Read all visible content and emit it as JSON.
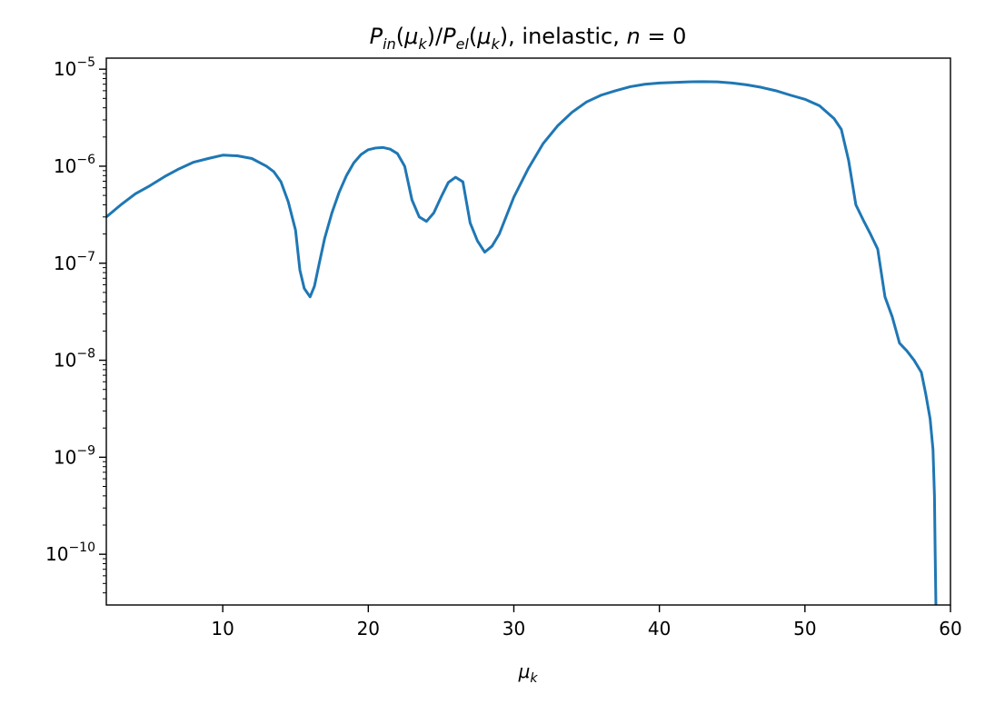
{
  "chart_data": {
    "type": "line",
    "title_parts": {
      "p_in": "P",
      "p_in_sub": "in",
      "mu1_open": "(",
      "mu1": "μ",
      "mu1_sub": "k",
      "mu1_close": ")/",
      "p_el": "P",
      "p_el_sub": "el",
      "mu2_open": "(",
      "mu2": "μ",
      "mu2_sub": "k",
      "mu2_close": "), inelastic, ",
      "n_sym": "n",
      "n_eq": " = 0"
    },
    "xlabel": {
      "sym": "μ",
      "sub": "k"
    },
    "ylabel": "",
    "x_scale": "linear",
    "y_scale": "log",
    "xlim": [
      2,
      60
    ],
    "ylim": [
      3e-11,
      1.3e-05
    ],
    "x_ticks": [
      10,
      20,
      30,
      40,
      50,
      60
    ],
    "x_tick_labels": [
      "10",
      "20",
      "30",
      "40",
      "50",
      "60"
    ],
    "y_ticks": [
      {
        "value": 1e-10,
        "base": "10",
        "exp": "−10"
      },
      {
        "value": 1e-09,
        "base": "10",
        "exp": "−9"
      },
      {
        "value": 1e-08,
        "base": "10",
        "exp": "−8"
      },
      {
        "value": 1e-07,
        "base": "10",
        "exp": "−7"
      },
      {
        "value": 1e-06,
        "base": "10",
        "exp": "−6"
      },
      {
        "value": 1e-05,
        "base": "10",
        "exp": "−5"
      }
    ],
    "grid": false,
    "legend": "none",
    "series": [
      {
        "color": "#1f77b4",
        "x": [
          2,
          3,
          4,
          5,
          6,
          7,
          8,
          9,
          10,
          11,
          12,
          13,
          13.5,
          14,
          14.5,
          15,
          15.3,
          15.6,
          16,
          16.3,
          16.6,
          17,
          17.5,
          18,
          18.5,
          19,
          19.5,
          20,
          20.5,
          21,
          21.5,
          22,
          22.5,
          23,
          23.5,
          24,
          24.5,
          25,
          25.5,
          26,
          26.5,
          27,
          27.5,
          28,
          28.5,
          29,
          30,
          31,
          32,
          33,
          34,
          35,
          36,
          37,
          38,
          39,
          40,
          41,
          42,
          43,
          44,
          45,
          46,
          47,
          48,
          49,
          50,
          51,
          52,
          52.5,
          53,
          53.5,
          54,
          54.5,
          55,
          55.5,
          56,
          56.5,
          57,
          57.5,
          58,
          58.3,
          58.6,
          58.8,
          58.9,
          58.95,
          59,
          59.05
        ],
        "y": [
          3e-07,
          4e-07,
          5.2e-07,
          6.3e-07,
          7.8e-07,
          9.4e-07,
          1.1e-06,
          1.2e-06,
          1.3e-06,
          1.28e-06,
          1.2e-06,
          1e-06,
          8.8e-07,
          6.9e-07,
          4.3e-07,
          2.2e-07,
          8.5e-08,
          5.5e-08,
          4.5e-08,
          5.8e-08,
          9.5e-08,
          1.8e-07,
          3.3e-07,
          5.4e-07,
          8e-07,
          1.08e-06,
          1.32e-06,
          1.48e-06,
          1.54e-06,
          1.56e-06,
          1.5e-06,
          1.35e-06,
          1e-06,
          4.5e-07,
          3e-07,
          2.7e-07,
          3.3e-07,
          4.8e-07,
          6.8e-07,
          7.7e-07,
          6.9e-07,
          2.6e-07,
          1.7e-07,
          1.3e-07,
          1.5e-07,
          2e-07,
          4.8e-07,
          9.5e-07,
          1.7e-06,
          2.6e-06,
          3.6e-06,
          4.6e-06,
          5.4e-06,
          6e-06,
          6.6e-06,
          7e-06,
          7.2e-06,
          7.3e-06,
          7.4e-06,
          7.45e-06,
          7.4e-06,
          7.2e-06,
          6.9e-06,
          6.5e-06,
          6e-06,
          5.4e-06,
          4.9e-06,
          4.2e-06,
          3.1e-06,
          2.4e-06,
          1.15e-06,
          4e-07,
          2.8e-07,
          2e-07,
          1.4e-07,
          4.5e-08,
          2.8e-08,
          1.5e-08,
          1.25e-08,
          1e-08,
          7.5e-09,
          4.5e-09,
          2.5e-09,
          1.2e-09,
          4e-10,
          1e-10,
          3e-11,
          3e-11
        ]
      }
    ]
  }
}
